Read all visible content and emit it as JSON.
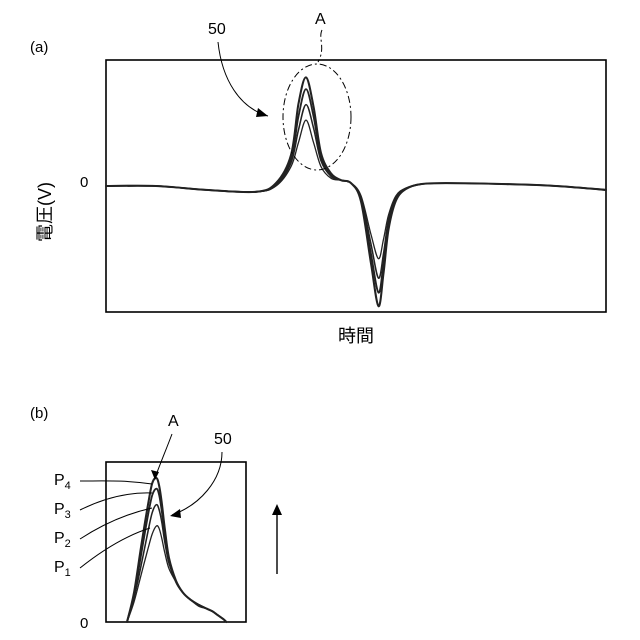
{
  "chart_data": [
    {
      "type": "line",
      "panel_label": "(a)",
      "xlabel": "時間",
      "ylabel": "電圧(V)",
      "zero_label": "0",
      "annotation_curve_label": "50",
      "annotation_region_label": "A",
      "grid": false,
      "xlim": [
        0,
        100
      ],
      "ylim": [
        -1.3,
        1.3
      ],
      "series": [
        {
          "x": [
            0,
            10,
            20,
            30,
            34,
            37,
            38.5,
            40,
            41.5,
            43,
            45,
            47,
            49,
            51,
            53,
            54.5,
            55.5,
            56.5,
            58,
            60,
            63,
            68,
            80,
            90,
            100
          ],
          "values": [
            0,
            0,
            -0.04,
            -0.06,
            0,
            0.2,
            0.45,
            0.68,
            0.45,
            0.2,
            0.08,
            0.06,
            0.03,
            -0.1,
            -0.5,
            -0.75,
            -0.55,
            -0.3,
            -0.1,
            -0.02,
            0.02,
            0.03,
            0.02,
            0,
            -0.04
          ]
        },
        {
          "x": [
            0,
            10,
            20,
            30,
            34,
            37,
            38.5,
            40,
            41.5,
            43,
            45,
            47,
            49,
            51,
            53,
            54.5,
            55.5,
            56.5,
            58,
            60,
            63,
            68,
            80,
            90,
            100
          ],
          "values": [
            0,
            0,
            -0.04,
            -0.06,
            0.01,
            0.24,
            0.58,
            0.84,
            0.6,
            0.26,
            0.1,
            0.06,
            0.03,
            -0.12,
            -0.6,
            -0.95,
            -0.7,
            -0.35,
            -0.12,
            -0.03,
            0.02,
            0.03,
            0.02,
            0,
            -0.04
          ]
        },
        {
          "x": [
            0,
            10,
            20,
            30,
            34,
            37,
            38.5,
            40,
            41.5,
            43,
            45,
            47,
            49,
            51,
            53,
            54.5,
            55.5,
            56.5,
            58,
            60,
            63,
            68,
            80,
            90,
            100
          ],
          "values": [
            0,
            0,
            -0.04,
            -0.06,
            0.02,
            0.28,
            0.72,
            1.0,
            0.72,
            0.3,
            0.12,
            0.06,
            0.03,
            -0.14,
            -0.7,
            -1.1,
            -0.8,
            -0.4,
            -0.14,
            -0.03,
            0.02,
            0.03,
            0.02,
            0,
            -0.04
          ]
        },
        {
          "x": [
            0,
            10,
            20,
            30,
            34,
            37,
            38.5,
            40,
            41.5,
            43,
            45,
            47,
            49,
            51,
            53,
            54.5,
            55.5,
            56.5,
            58,
            60,
            63,
            68,
            80,
            90,
            100
          ],
          "values": [
            0,
            0,
            -0.04,
            -0.06,
            0.03,
            0.32,
            0.85,
            1.12,
            0.82,
            0.34,
            0.13,
            0.06,
            0.03,
            -0.16,
            -0.8,
            -1.24,
            -0.9,
            -0.45,
            -0.15,
            -0.03,
            0.02,
            0.03,
            0.02,
            0,
            -0.04
          ]
        }
      ]
    },
    {
      "type": "line",
      "panel_label": "(b)",
      "zero_label": "0",
      "annotation_curve_label": "50",
      "annotation_region_label": "A",
      "peak_labels": [
        {
          "main": "P",
          "sub": "4"
        },
        {
          "main": "P",
          "sub": "3"
        },
        {
          "main": "P",
          "sub": "2"
        },
        {
          "main": "P",
          "sub": "1"
        }
      ],
      "arrow": "up",
      "grid": false,
      "xlim": [
        0,
        100
      ],
      "ylim": [
        0,
        1.2
      ],
      "series": [
        {
          "x": [
            15,
            20,
            25,
            30,
            33,
            36,
            38,
            40,
            42,
            45,
            50,
            55,
            60,
            66,
            72,
            76,
            80,
            84,
            86
          ],
          "values": [
            0,
            0.15,
            0.35,
            0.55,
            0.66,
            0.72,
            0.7,
            0.62,
            0.52,
            0.4,
            0.3,
            0.22,
            0.17,
            0.12,
            0.1,
            0.08,
            0.05,
            0.02,
            0
          ]
        },
        {
          "x": [
            15,
            20,
            25,
            30,
            33,
            36,
            38,
            40,
            42,
            45,
            50,
            55,
            60,
            66,
            72,
            76,
            80,
            84,
            86
          ],
          "values": [
            0,
            0.18,
            0.42,
            0.68,
            0.82,
            0.88,
            0.84,
            0.74,
            0.6,
            0.44,
            0.3,
            0.22,
            0.17,
            0.13,
            0.1,
            0.08,
            0.05,
            0.02,
            0
          ]
        },
        {
          "x": [
            15,
            20,
            25,
            30,
            33,
            36,
            38,
            40,
            42,
            45,
            50,
            55,
            60,
            66,
            72,
            76,
            80,
            84,
            86
          ],
          "values": [
            0,
            0.2,
            0.5,
            0.8,
            0.95,
            1.0,
            0.95,
            0.82,
            0.66,
            0.46,
            0.3,
            0.22,
            0.17,
            0.13,
            0.1,
            0.08,
            0.05,
            0.02,
            0
          ]
        },
        {
          "x": [
            15,
            20,
            25,
            30,
            33,
            36,
            38,
            40,
            42,
            45,
            50,
            55,
            60,
            66,
            72,
            76,
            80,
            84,
            86
          ],
          "values": [
            0,
            0.22,
            0.56,
            0.88,
            1.04,
            1.08,
            1.02,
            0.88,
            0.7,
            0.48,
            0.31,
            0.22,
            0.17,
            0.13,
            0.1,
            0.08,
            0.05,
            0.02,
            0
          ]
        }
      ]
    }
  ]
}
